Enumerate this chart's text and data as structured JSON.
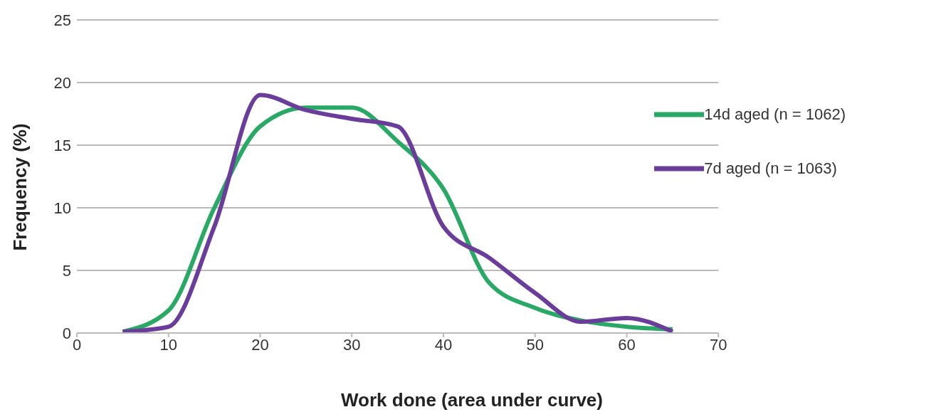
{
  "chart_data": {
    "type": "line",
    "xlabel": "Work done (area under curve)",
    "ylabel": "Frequency (%)",
    "x": [
      5,
      10,
      15,
      20,
      25,
      30,
      35,
      40,
      45,
      50,
      55,
      60,
      65
    ],
    "series": [
      {
        "name": "14d aged (n = 1062)",
        "color": "#2aa866",
        "values": [
          0.1,
          1.8,
          10.0,
          16.5,
          18.0,
          18.0,
          15.3,
          11.5,
          4.0,
          2.0,
          1.0,
          0.5,
          0.3
        ]
      },
      {
        "name": "7d aged (n = 1063)",
        "color": "#6a3d9a",
        "values": [
          0.1,
          0.5,
          8.5,
          19.0,
          17.8,
          17.1,
          16.5,
          8.5,
          6.0,
          3.2,
          0.9,
          1.2,
          0.1
        ]
      }
    ],
    "xlim": [
      0,
      70
    ],
    "xticks": [
      0,
      10,
      20,
      30,
      40,
      50,
      60,
      70
    ],
    "ylim": [
      0,
      25
    ],
    "yticks": [
      0,
      5,
      10,
      15,
      20,
      25
    ],
    "grid": "y",
    "legend": "right",
    "marker": "none",
    "line_style": "solid"
  }
}
